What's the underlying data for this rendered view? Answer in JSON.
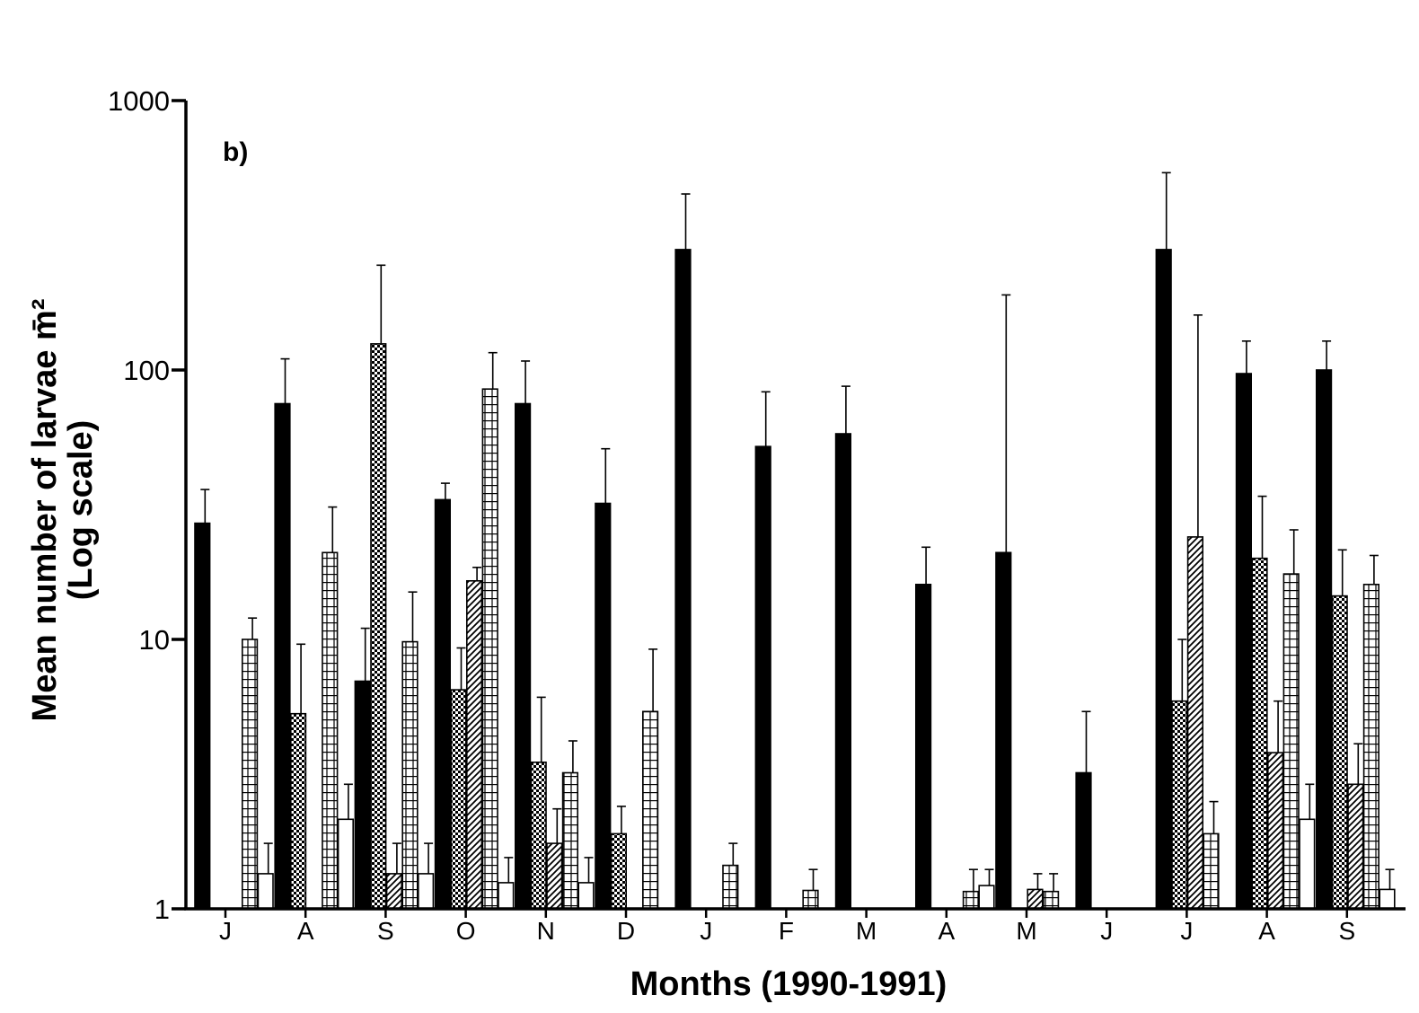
{
  "chart_data": {
    "type": "bar",
    "panel_label": "b)",
    "xlabel": "Months (1990-1991)",
    "ylabel": "Mean number of larvae m̄²",
    "ylabel_sub": "(Log scale)",
    "y_scale": "log",
    "ylim": [
      1,
      1000
    ],
    "y_ticks": [
      "1",
      "10",
      "100",
      "1000"
    ],
    "categories": [
      "J",
      "A",
      "S",
      "O",
      "N",
      "D",
      "J",
      "F",
      "M",
      "A",
      "M",
      "J",
      "J",
      "A",
      "S"
    ],
    "series": [
      {
        "pattern": "solid",
        "values": [
          27,
          75,
          7,
          33,
          75,
          32,
          280,
          52,
          58,
          16,
          21,
          3.2,
          280,
          97,
          100
        ],
        "error_upper": [
          36,
          110,
          11,
          38,
          108,
          51,
          450,
          83,
          87,
          22,
          190,
          5.4,
          540,
          128,
          128
        ]
      },
      {
        "pattern": "checker",
        "values": [
          null,
          5.3,
          125,
          6.5,
          3.5,
          1.9,
          null,
          null,
          null,
          null,
          null,
          null,
          5.9,
          20,
          14.5
        ],
        "error_upper": [
          null,
          9.6,
          245,
          9.3,
          6.1,
          2.4,
          null,
          null,
          null,
          null,
          null,
          null,
          10,
          34,
          21.5
        ]
      },
      {
        "pattern": "diagonal",
        "values": [
          null,
          null,
          1.35,
          16.5,
          1.75,
          null,
          null,
          null,
          null,
          null,
          1.18,
          null,
          24,
          3.8,
          2.9
        ],
        "error_upper": [
          null,
          null,
          1.75,
          18.5,
          2.35,
          null,
          null,
          null,
          null,
          null,
          1.35,
          null,
          160,
          5.9,
          4.1
        ]
      },
      {
        "pattern": "horizontal",
        "values": [
          10,
          21,
          9.8,
          85,
          3.2,
          5.4,
          1.45,
          1.17,
          null,
          1.16,
          1.16,
          null,
          1.9,
          17.5,
          16
        ],
        "error_upper": [
          12,
          31,
          15,
          116,
          4.2,
          9.2,
          1.75,
          1.4,
          null,
          1.4,
          1.35,
          null,
          2.5,
          25.5,
          20.5
        ]
      },
      {
        "pattern": "open",
        "values": [
          1.35,
          2.15,
          1.35,
          1.25,
          1.25,
          null,
          null,
          null,
          null,
          1.22,
          null,
          null,
          null,
          2.15,
          1.18
        ],
        "error_upper": [
          1.75,
          2.9,
          1.75,
          1.55,
          1.55,
          null,
          null,
          null,
          null,
          1.4,
          null,
          null,
          null,
          2.9,
          1.4
        ]
      }
    ]
  }
}
